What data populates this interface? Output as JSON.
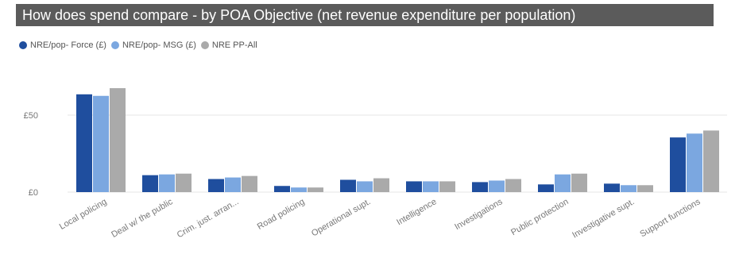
{
  "title": "How does spend compare - by POA Objective (net revenue expenditure per population)",
  "colors": {
    "title_background": "#5b5b5b",
    "title_text": "#ffffff",
    "gridline": "#e6e6e6",
    "axis_text": "#777777"
  },
  "chart_data": {
    "type": "bar",
    "title": "How does spend compare - by POA Objective (net revenue expenditure per population)",
    "xlabel": "",
    "ylabel": "",
    "categories": [
      "Local policing",
      "Deal w/ the public",
      "Crim. just. arran...",
      "Road policing",
      "Operational supt.",
      "Intelligence",
      "Investigations",
      "Public protection",
      "Investigative supt.",
      "Support functions"
    ],
    "series": [
      {
        "name": "NRE/pop- Force (£)",
        "color": "#1f4e9e",
        "values": [
          63.5,
          11,
          8.5,
          4,
          8,
          7,
          6.5,
          5,
          5.5,
          35.5
        ]
      },
      {
        "name": "NRE/pop- MSG (£)",
        "color": "#7ba7e0",
        "values": [
          62.5,
          11.5,
          9.5,
          3,
          7,
          7,
          7.5,
          11.5,
          4.5,
          38
        ]
      },
      {
        "name": "NRE  PP-All",
        "color": "#aaaaaa",
        "values": [
          67.5,
          12,
          10.5,
          3,
          9,
          7,
          8.5,
          12,
          4.5,
          40
        ]
      }
    ],
    "ylim": [
      0,
      80
    ],
    "yticks": [
      {
        "value": 0,
        "label": "£0"
      },
      {
        "value": 50,
        "label": "£50"
      }
    ],
    "grid": true,
    "legend_position": "top-left"
  }
}
